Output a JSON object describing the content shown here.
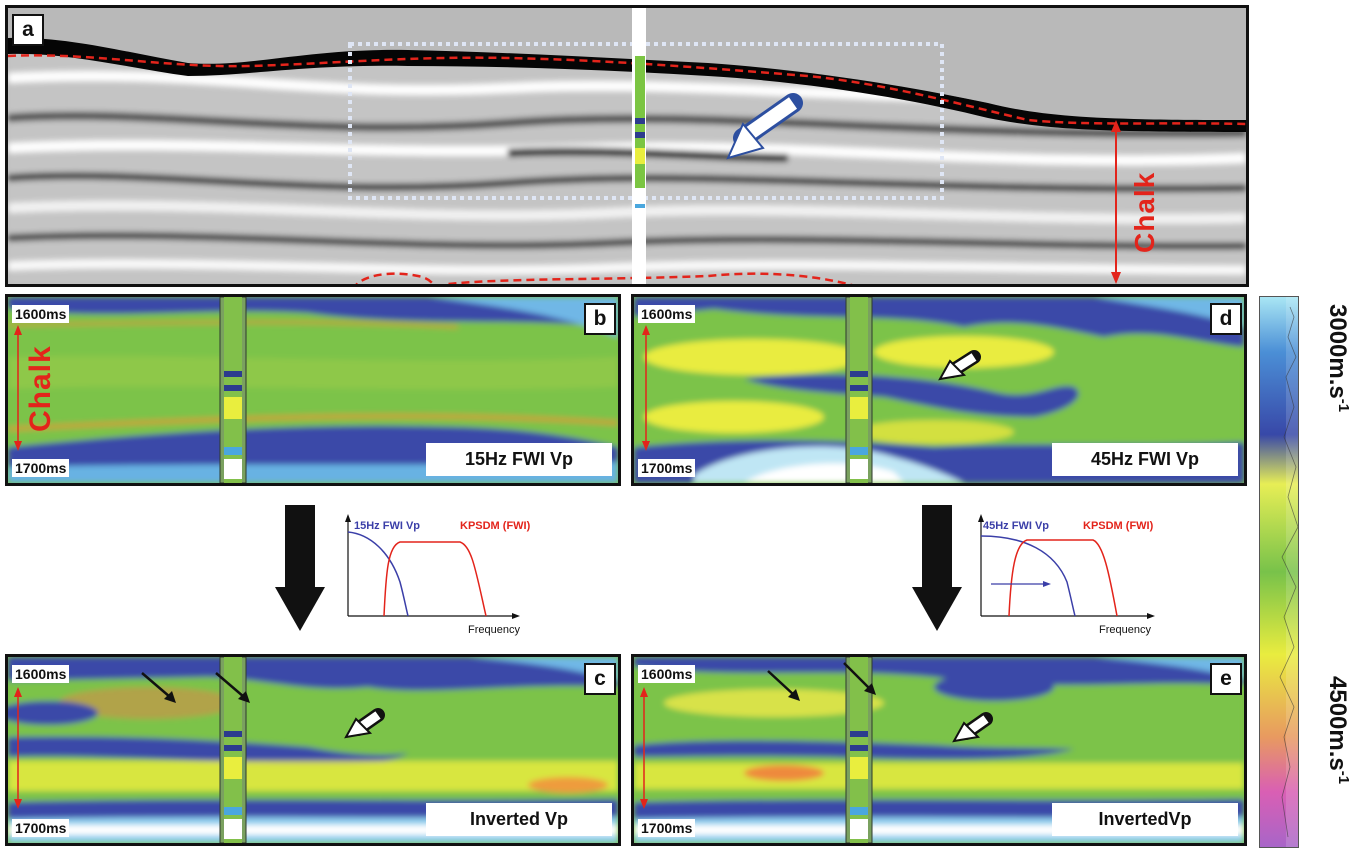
{
  "panel_a": {
    "letter": "a",
    "chalk_label": "Chalk"
  },
  "panel_b": {
    "letter": "b",
    "time_top": "1600ms",
    "time_bottom": "1700ms",
    "title": "15Hz FWI Vp",
    "chalk_label": "Chalk"
  },
  "panel_c": {
    "letter": "c",
    "time_top": "1600ms",
    "time_bottom": "1700ms",
    "title": "Inverted Vp"
  },
  "panel_d": {
    "letter": "d",
    "time_top": "1600ms",
    "time_bottom": "1700ms",
    "title": "45Hz FWI Vp"
  },
  "panel_e": {
    "letter": "e",
    "time_top": "1600ms",
    "time_bottom": "1700ms",
    "title": "InvertedVp"
  },
  "spectrum_left": {
    "fwi_label": "15Hz FWI Vp",
    "kpsdm_label": "KPSDM (FWI)",
    "x_label": "Frequency"
  },
  "spectrum_right": {
    "fwi_label": "45Hz FWI Vp",
    "kpsdm_label": "KPSDM (FWI)",
    "x_label": "Frequency"
  },
  "colorbar": {
    "top_value": "3000m.s",
    "bottom_value": "4500m.s",
    "unit_exp": "-1"
  },
  "colors": {
    "fwi_curve": "#3b3fa8",
    "kpsdm_curve": "#e3241b",
    "marker": "#e3241b"
  }
}
